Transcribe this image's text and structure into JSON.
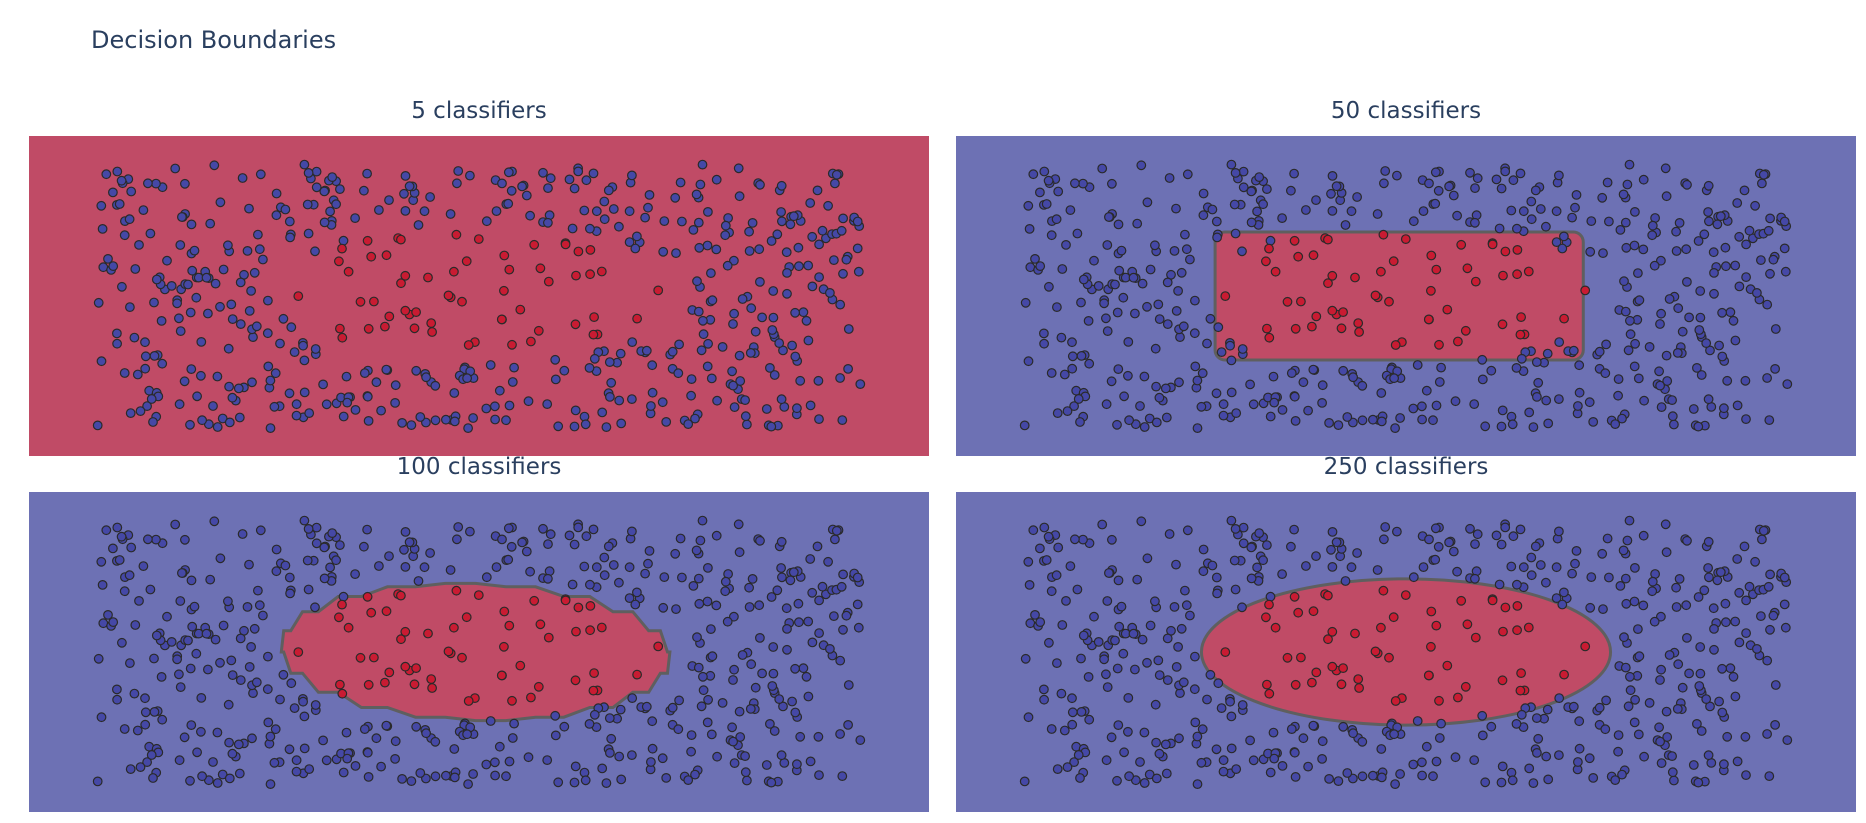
{
  "figure": {
    "title": "Decision Boundaries",
    "colors": {
      "class_0": "#6d71b4",
      "class_1": "#c04b66",
      "point_0": "#4548a6",
      "point_1": "#c91b32",
      "edge": "#2a2a2a",
      "boundary": "#5f5f5f"
    }
  },
  "chart_data": [
    {
      "type": "scatter",
      "title": "5 classifiers",
      "n_estimators": 5,
      "xlim": [
        -6.6,
        6.6
      ],
      "ylim": [
        -3.5,
        3.5
      ],
      "background_class": 1,
      "region_class_1": null,
      "classes": [
        "blue",
        "red"
      ]
    },
    {
      "type": "scatter",
      "title": "50 classifiers",
      "n_estimators": 50,
      "xlim": [
        -6.6,
        6.6
      ],
      "ylim": [
        -3.5,
        3.5
      ],
      "background_class": 0,
      "region_class_1": {
        "x": [
          -2.8,
          2.6
        ],
        "y": [
          -1.4,
          1.4
        ],
        "shape": "blocky-rectangle"
      },
      "classes": [
        "blue",
        "red"
      ]
    },
    {
      "type": "scatter",
      "title": "100 classifiers",
      "n_estimators": 100,
      "xlim": [
        -6.6,
        6.6
      ],
      "ylim": [
        -3.5,
        3.5
      ],
      "background_class": 0,
      "region_class_1": {
        "x": [
          -2.9,
          2.8
        ],
        "y": [
          -1.5,
          1.5
        ],
        "shape": "blocky-ellipse"
      },
      "classes": [
        "blue",
        "red"
      ]
    },
    {
      "type": "scatter",
      "title": "250 classifiers",
      "n_estimators": 250,
      "xlim": [
        -6.6,
        6.6
      ],
      "ylim": [
        -3.5,
        3.5
      ],
      "background_class": 0,
      "region_class_1": {
        "x": [
          -3.0,
          3.0
        ],
        "y": [
          -1.6,
          1.6
        ],
        "shape": "ellipse"
      },
      "classes": [
        "blue",
        "red"
      ]
    }
  ]
}
